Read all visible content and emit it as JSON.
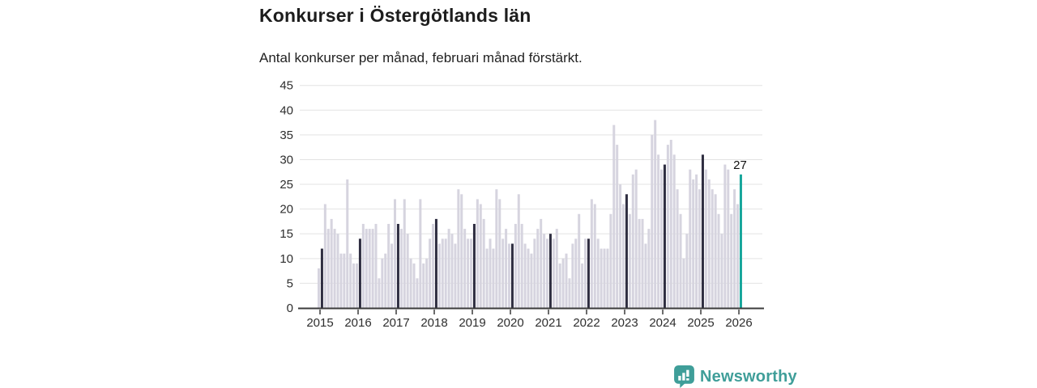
{
  "title": "Konkurser i Östergötlands län",
  "subtitle": "Antal konkurser per månad, februari månad förstärkt.",
  "annotation": {
    "last_value_label": "27"
  },
  "logo": {
    "text": "Newsworthy",
    "icon": "bar-chart-speech-bubble-icon"
  },
  "colors": {
    "bar_default": "#d6d4df",
    "bar_february": "#2f2e41",
    "bar_highlight": "#17a69b",
    "grid": "#e3e3e3",
    "axis": "#3b3b3b",
    "logo_teal": "#3f9e99",
    "text_dark": "#1d1d1d"
  },
  "chart_data": {
    "type": "bar",
    "title": "Konkurser i Östergötlands län",
    "subtitle": "Antal konkurser per månad, februari månad förstärkt.",
    "xlabel": "",
    "ylabel": "",
    "ylim": [
      0,
      45
    ],
    "yticks": [
      0,
      5,
      10,
      15,
      20,
      25,
      30,
      35,
      40,
      45
    ],
    "xticklabels": [
      "2015",
      "2016",
      "2017",
      "2018",
      "2019",
      "2020",
      "2021",
      "2022",
      "2023",
      "2024",
      "2025",
      "2026"
    ],
    "grid": "horizontal",
    "legend": "none",
    "highlight_rule": "February bars are dark; latest bar (Feb 2026) is teal with value label",
    "unit": "konkurser per månad",
    "monthly": [
      {
        "year": 2015,
        "values": [
          8,
          12,
          21,
          16,
          18,
          16,
          15,
          11,
          11,
          26,
          11,
          9
        ]
      },
      {
        "year": 2016,
        "values": [
          9,
          14,
          17,
          16,
          16,
          16,
          17,
          6,
          10,
          11,
          17,
          13
        ]
      },
      {
        "year": 2017,
        "values": [
          22,
          17,
          16,
          22,
          15,
          10,
          9,
          6,
          22,
          9,
          10,
          14
        ]
      },
      {
        "year": 2018,
        "values": [
          17,
          18,
          13,
          14,
          14,
          16,
          15,
          13,
          24,
          23,
          16,
          14
        ]
      },
      {
        "year": 2019,
        "values": [
          14,
          17,
          22,
          21,
          18,
          12,
          14,
          12,
          24,
          22,
          14,
          16
        ]
      },
      {
        "year": 2020,
        "values": [
          13,
          13,
          17,
          23,
          17,
          13,
          12,
          11,
          14,
          16,
          18,
          15
        ]
      },
      {
        "year": 2021,
        "values": [
          14,
          15,
          14,
          16,
          9,
          10,
          11,
          6,
          13,
          14,
          19,
          9
        ]
      },
      {
        "year": 2022,
        "values": [
          14,
          14,
          22,
          21,
          14,
          12,
          12,
          12,
          19,
          37,
          33,
          25
        ]
      },
      {
        "year": 2023,
        "values": [
          21,
          23,
          19,
          27,
          28,
          18,
          18,
          13,
          16,
          35,
          38,
          31
        ]
      },
      {
        "year": 2024,
        "values": [
          28,
          29,
          33,
          34,
          31,
          24,
          19,
          10,
          15,
          28,
          26,
          27
        ]
      },
      {
        "year": 2025,
        "values": [
          24,
          31,
          28,
          26,
          24,
          23,
          19,
          15,
          29,
          28,
          19,
          24
        ]
      },
      {
        "year": 2026,
        "values": [
          21,
          27
        ]
      }
    ],
    "last_point": {
      "year": 2026,
      "month": 2,
      "value": 27
    }
  }
}
